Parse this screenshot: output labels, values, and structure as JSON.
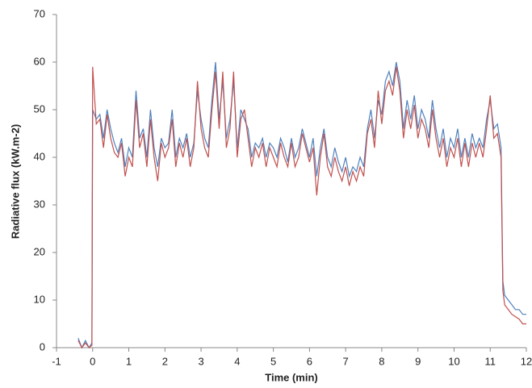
{
  "chart_data": {
    "type": "line",
    "x_label": "Time (min)",
    "y_label": "Radiative flux (kW.m-2)",
    "x": [
      -0.4,
      -0.3,
      -0.2,
      -0.1,
      -0.02,
      0,
      0.1,
      0.2,
      0.3,
      0.4,
      0.5,
      0.6,
      0.7,
      0.8,
      0.9,
      1,
      1.1,
      1.2,
      1.3,
      1.4,
      1.5,
      1.6,
      1.7,
      1.8,
      1.9,
      2,
      2.1,
      2.2,
      2.3,
      2.4,
      2.5,
      2.6,
      2.7,
      2.8,
      2.9,
      3,
      3.1,
      3.2,
      3.3,
      3.4,
      3.5,
      3.6,
      3.7,
      3.8,
      3.9,
      4,
      4.1,
      4.2,
      4.3,
      4.4,
      4.5,
      4.6,
      4.7,
      4.8,
      4.9,
      5,
      5.1,
      5.2,
      5.3,
      5.4,
      5.5,
      5.6,
      5.7,
      5.8,
      5.9,
      6,
      6.1,
      6.2,
      6.3,
      6.4,
      6.5,
      6.6,
      6.7,
      6.8,
      6.9,
      7,
      7.1,
      7.2,
      7.3,
      7.4,
      7.5,
      7.6,
      7.7,
      7.8,
      7.9,
      8,
      8.1,
      8.2,
      8.3,
      8.4,
      8.5,
      8.6,
      8.7,
      8.8,
      8.9,
      9,
      9.1,
      9.2,
      9.3,
      9.4,
      9.5,
      9.6,
      9.7,
      9.8,
      9.9,
      10,
      10.1,
      10.2,
      10.3,
      10.4,
      10.5,
      10.6,
      10.7,
      10.8,
      10.9,
      11,
      11.1,
      11.2,
      11.3,
      11.35,
      11.4,
      11.5,
      11.6,
      11.7,
      11.8,
      11.9,
      12
    ],
    "series": [
      {
        "color": "#4f81bd",
        "values": [
          2,
          0,
          1.5,
          0,
          1,
          50,
          48,
          49,
          44,
          50,
          46,
          43,
          41,
          44,
          38,
          42,
          40,
          54,
          44,
          46,
          40,
          50,
          42,
          38,
          44,
          42,
          43,
          50,
          40,
          44,
          42,
          45,
          40,
          43,
          54,
          48,
          44,
          42,
          52,
          60,
          48,
          56,
          44,
          48,
          56,
          42,
          50,
          48,
          46,
          40,
          43,
          42,
          44,
          40,
          43,
          42,
          40,
          44,
          42,
          39,
          44,
          40,
          42,
          46,
          43,
          40,
          44,
          36,
          42,
          46,
          40,
          38,
          42,
          39,
          37,
          40,
          36,
          38,
          37,
          40,
          38,
          46,
          50,
          44,
          52,
          49,
          56,
          58,
          55,
          60,
          56,
          46,
          52,
          48,
          53,
          46,
          50,
          48,
          44,
          52,
          46,
          42,
          46,
          40,
          44,
          42,
          46,
          40,
          44,
          40,
          45,
          42,
          44,
          42,
          48,
          52,
          46,
          47,
          42,
          14,
          11,
          10,
          9,
          8,
          8,
          7,
          7
        ]
      },
      {
        "color": "#c0504d",
        "values": [
          1.5,
          0,
          1,
          0,
          0.5,
          59,
          47,
          48,
          42,
          49,
          44,
          41,
          40,
          43,
          36,
          40,
          38,
          52,
          42,
          45,
          38,
          48,
          40,
          35,
          43,
          40,
          42,
          48,
          38,
          43,
          40,
          44,
          38,
          42,
          56,
          46,
          42,
          40,
          50,
          58,
          46,
          58,
          42,
          46,
          58,
          40,
          48,
          50,
          44,
          38,
          42,
          40,
          43,
          38,
          42,
          40,
          38,
          43,
          40,
          38,
          43,
          38,
          40,
          45,
          42,
          39,
          42,
          32,
          40,
          45,
          38,
          36,
          40,
          37,
          35,
          38,
          34,
          37,
          35,
          38,
          36,
          45,
          48,
          42,
          54,
          47,
          54,
          56,
          53,
          59,
          54,
          44,
          50,
          46,
          51,
          44,
          48,
          46,
          42,
          50,
          44,
          40,
          44,
          38,
          42,
          40,
          44,
          38,
          43,
          38,
          43,
          40,
          43,
          40,
          46,
          53,
          44,
          45,
          40,
          12,
          9,
          8,
          7,
          6.5,
          6,
          5,
          5
        ]
      }
    ],
    "xlim": [
      -1,
      12
    ],
    "xticks": [
      -1,
      0,
      1,
      2,
      3,
      4,
      5,
      6,
      7,
      8,
      9,
      10,
      11,
      12
    ],
    "ylim": [
      0,
      70
    ],
    "yticks": [
      0,
      10,
      20,
      30,
      40,
      50,
      60,
      70
    ]
  }
}
